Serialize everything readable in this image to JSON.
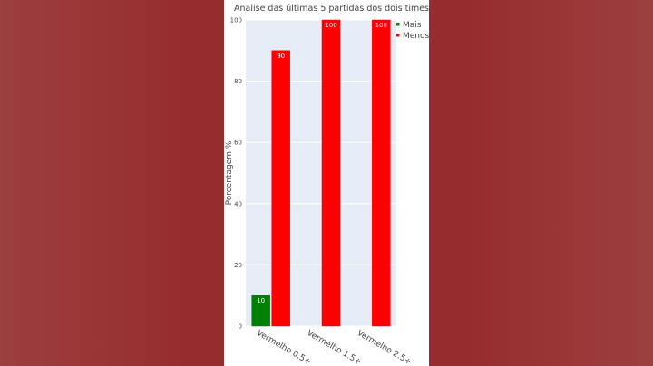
{
  "chart_data": {
    "type": "bar",
    "title": "Analise das últimas 5 partidas dos dois times",
    "ylabel": "Porcentagem %",
    "xlabel": "",
    "categories": [
      "Vermelho 0.5+",
      "Vermelho 1.5+",
      "Vermelho 2.5+"
    ],
    "series": [
      {
        "name": "Mais",
        "color": "#008000",
        "values": [
          10,
          0,
          0
        ]
      },
      {
        "name": "Menos",
        "color": "#ff0000",
        "values": [
          90,
          100,
          100
        ]
      }
    ],
    "ylim": [
      0,
      100
    ],
    "yticks": [
      "0",
      "20",
      "40",
      "60",
      "80",
      "100"
    ],
    "grid": true,
    "legend_position": "top-right",
    "plot_background": "#e5ecf6"
  },
  "background_color": "#962c2c"
}
